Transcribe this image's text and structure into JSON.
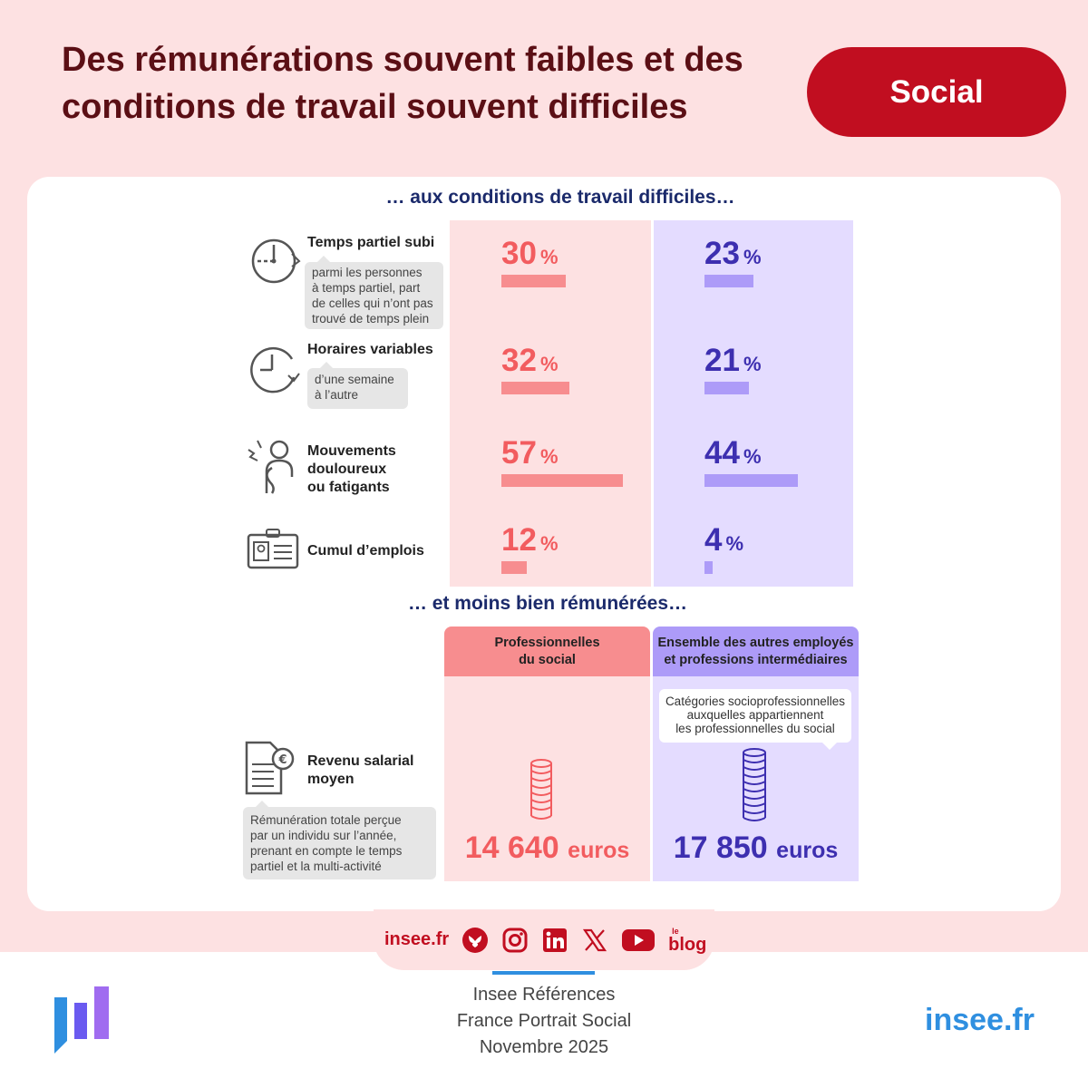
{
  "header": {
    "title_line1": "Des rémunérations souvent faibles et des",
    "title_line2": "conditions de travail souvent difficiles",
    "badge": "Social"
  },
  "colors": {
    "pink": "#f25c5f",
    "pink_bar": "#f78d8f",
    "purple": "#3d2fb0",
    "purple_bar": "#ad9bf8",
    "accent": "#c10e20"
  },
  "section1": {
    "title": "… aux conditions de travail difficiles…"
  },
  "section2": {
    "title": "… et moins bien rémunérées…"
  },
  "chart_data": {
    "type": "bar",
    "title": "… aux conditions de travail difficiles…",
    "unit": "%",
    "categories": [
      "Temps partiel subi",
      "Horaires variables",
      "Mouvements douloureux ou fatigants",
      "Cumul d’emplois"
    ],
    "series": [
      {
        "name": "Professionnelles du social",
        "values": [
          30,
          32,
          57,
          12
        ]
      },
      {
        "name": "Ensemble des autres employés et professions intermédiaires",
        "values": [
          23,
          21,
          44,
          4
        ]
      }
    ],
    "income": {
      "label": "Revenu salarial moyen",
      "unit": "euros",
      "values": [
        14640,
        17850
      ],
      "display": [
        "14 640",
        "17 850"
      ]
    }
  },
  "rows": [
    {
      "label_line1": "Temps partiel subi",
      "label_line2": "",
      "label_line3": "",
      "note_lines": [
        "parmi les personnes",
        "à temps partiel, part",
        "de celles qui n’ont pas",
        "trouvé de temps plein"
      ]
    },
    {
      "label_line1": "Horaires variables",
      "label_line2": "",
      "label_line3": "",
      "note_lines": [
        "d’une semaine",
        "à l’autre"
      ]
    },
    {
      "label_line1": "Mouvements",
      "label_line2": "douloureux",
      "label_line3": "ou fatigants"
    },
    {
      "label_line1": "Cumul d’emplois"
    }
  ],
  "income_section": {
    "label_line1": "Revenu salarial",
    "label_line2": "moyen",
    "note_lines": [
      "Rémunération totale perçue",
      "par un individu sur l’année,",
      "prenant en compte le temps",
      "partiel et la multi-activité"
    ],
    "header_pink_line1": "Professionnelles",
    "header_pink_line2": "du social",
    "header_purple_line1": "Ensemble des autres employés",
    "header_purple_line2": "et professions intermédiaires",
    "purple_note_lines": [
      "Catégories socioprofessionnelles",
      "auxquelles appartiennent",
      "les professionnelles du social"
    ]
  },
  "social": {
    "site": "insee.fr",
    "blog_small": "le",
    "blog": "blog",
    "icons": [
      "bluesky-icon",
      "instagram-icon",
      "linkedin-icon",
      "x-icon",
      "youtube-icon",
      "blog-icon"
    ]
  },
  "footer": {
    "ref_line1": "Insee Références",
    "ref_line2": "France Portrait Social",
    "ref_line3": "Novembre 2025",
    "site": "insee.fr"
  }
}
